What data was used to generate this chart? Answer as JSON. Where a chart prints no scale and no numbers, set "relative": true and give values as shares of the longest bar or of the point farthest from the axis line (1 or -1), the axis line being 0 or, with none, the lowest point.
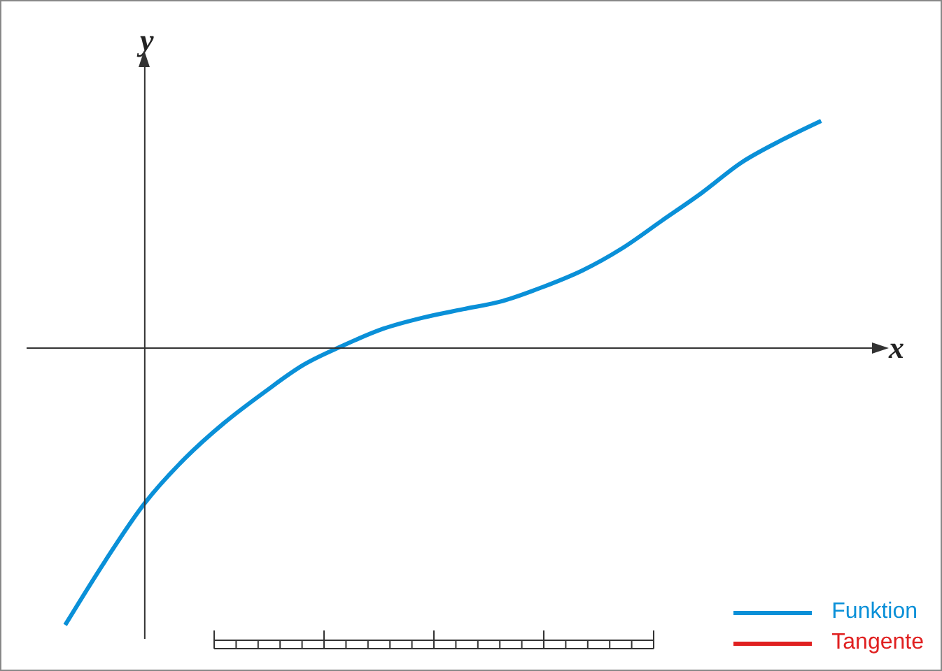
{
  "chart_data": {
    "type": "line",
    "relative": true,
    "xlabel": "x",
    "ylabel": "y",
    "legend": "bottom right",
    "marker": "none",
    "line_style": "solid",
    "categories": [
      null,
      null,
      null,
      null,
      null,
      null,
      null,
      null,
      null,
      null,
      null,
      null,
      null,
      null,
      null,
      null,
      null,
      null,
      null,
      null
    ],
    "series": [
      {
        "name": "Funktion",
        "color": "#0a90d8",
        "values": [
          -1,
          -0.77,
          -0.56,
          -0.4,
          -0.27,
          -0.16,
          -0.06,
          0.01,
          0.07,
          0.11,
          0.14,
          0.17,
          0.22,
          0.28,
          0.36,
          0.46,
          0.56,
          0.67,
          0.75,
          0.82
        ]
      },
      {
        "name": "Tangente",
        "color": "#e02020",
        "values": [
          null,
          null,
          null,
          null,
          null,
          null,
          null,
          null,
          null,
          null,
          null,
          null,
          null,
          null,
          null,
          null,
          null,
          null,
          null,
          null
        ]
      }
    ]
  }
}
